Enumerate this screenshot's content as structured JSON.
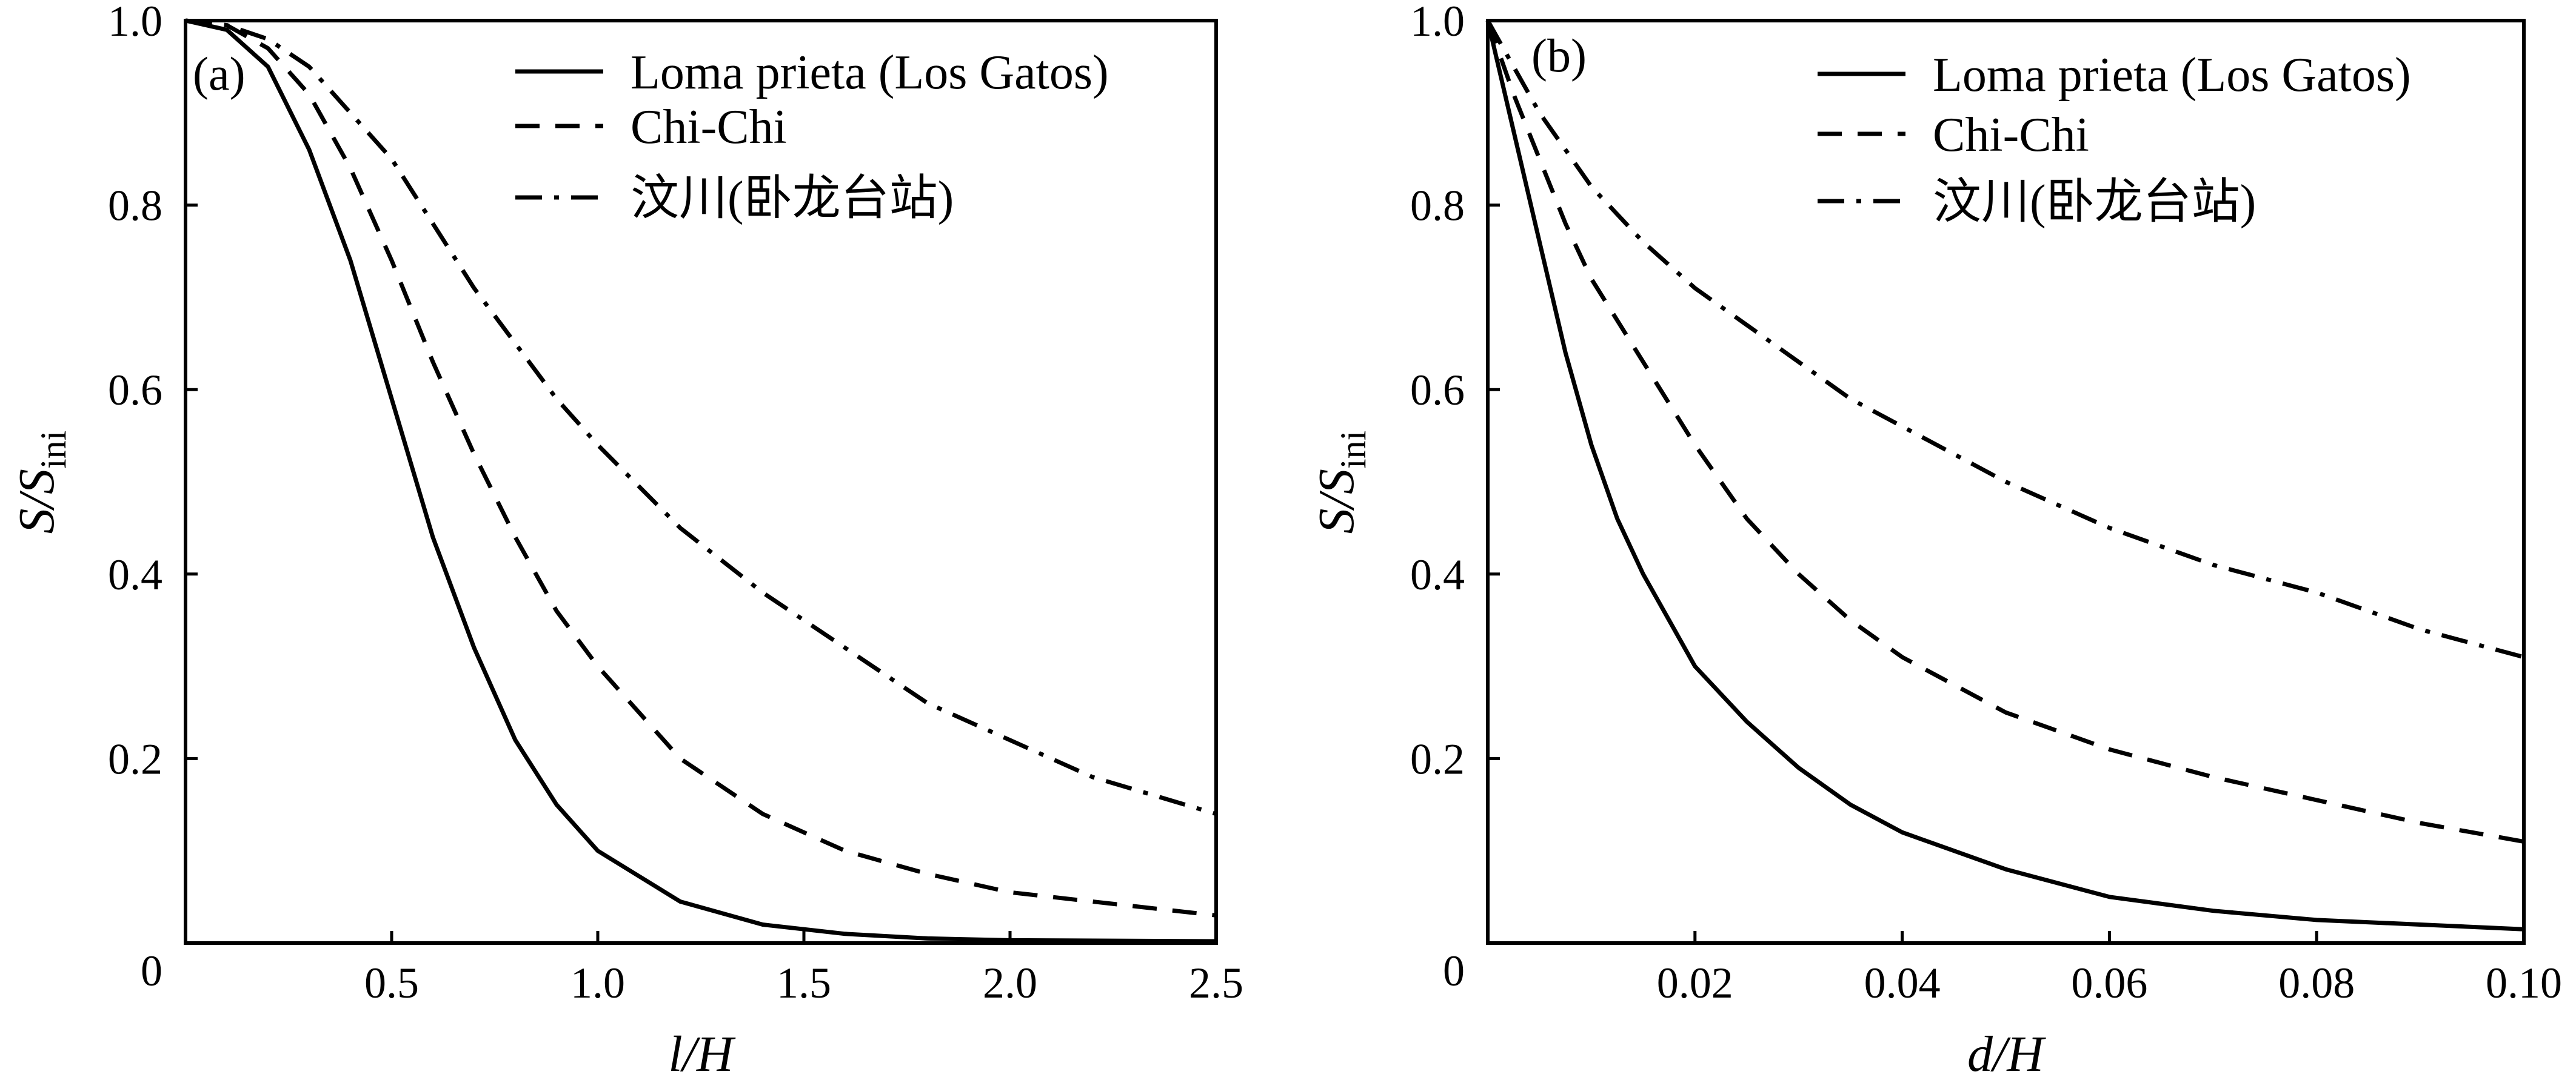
{
  "figure": {
    "panels": [
      {
        "panel_label": "(a)",
        "ylabel_main": "S",
        "ylabel_sep": "/S",
        "ylabel_sub": "ini",
        "xlabel": "l/H"
      },
      {
        "panel_label": "(b)",
        "ylabel_main": "S",
        "ylabel_sep": "/S",
        "ylabel_sub": "ini",
        "xlabel": "d/H"
      }
    ]
  },
  "chart_data": [
    {
      "type": "line",
      "panel": "(a)",
      "xlabel": "l/H",
      "ylabel": "S/S_ini",
      "xlim": [
        0,
        2.5
      ],
      "ylim": [
        0,
        1.0
      ],
      "xticks": [
        0.5,
        1.0,
        1.5,
        2.0,
        2.5
      ],
      "xtick_labels": [
        "0.5",
        "1.0",
        "1.5",
        "2.0",
        "2.5"
      ],
      "yticks": [
        0,
        0.2,
        0.4,
        0.6,
        0.8,
        1.0
      ],
      "ytick_labels": [
        "0",
        "0.2",
        "0.4",
        "0.6",
        "0.8",
        "1.0"
      ],
      "grid": false,
      "legend_position": "top-right",
      "series": [
        {
          "name": "Loma prieta (Los Gatos)",
          "style": "solid",
          "x": [
            0,
            0.1,
            0.2,
            0.3,
            0.4,
            0.5,
            0.6,
            0.7,
            0.8,
            0.9,
            1.0,
            1.2,
            1.4,
            1.6,
            1.8,
            2.0,
            2.5
          ],
          "y": [
            1.0,
            0.99,
            0.95,
            0.86,
            0.74,
            0.59,
            0.44,
            0.32,
            0.22,
            0.15,
            0.1,
            0.045,
            0.02,
            0.01,
            0.005,
            0.003,
            0.002
          ]
        },
        {
          "name": "Chi-Chi",
          "style": "dashed",
          "x": [
            0,
            0.1,
            0.2,
            0.3,
            0.4,
            0.5,
            0.6,
            0.7,
            0.8,
            0.9,
            1.0,
            1.2,
            1.4,
            1.6,
            1.8,
            2.0,
            2.2,
            2.5
          ],
          "y": [
            1.0,
            0.995,
            0.97,
            0.92,
            0.84,
            0.74,
            0.63,
            0.53,
            0.44,
            0.36,
            0.3,
            0.2,
            0.14,
            0.1,
            0.075,
            0.055,
            0.045,
            0.03
          ]
        },
        {
          "name": "汶川(卧龙台站)",
          "style": "dashdot",
          "x": [
            0,
            0.1,
            0.2,
            0.3,
            0.4,
            0.5,
            0.6,
            0.7,
            0.8,
            0.9,
            1.0,
            1.2,
            1.4,
            1.6,
            1.8,
            2.0,
            2.2,
            2.5
          ],
          "y": [
            1.0,
            0.995,
            0.98,
            0.95,
            0.9,
            0.85,
            0.78,
            0.71,
            0.65,
            0.59,
            0.54,
            0.45,
            0.38,
            0.32,
            0.26,
            0.22,
            0.18,
            0.14
          ]
        }
      ]
    },
    {
      "type": "line",
      "panel": "(b)",
      "xlabel": "d/H",
      "ylabel": "S/S_ini",
      "xlim": [
        0,
        0.1
      ],
      "ylim": [
        0,
        1.0
      ],
      "xticks": [
        0.02,
        0.04,
        0.06,
        0.08,
        0.1
      ],
      "xtick_labels": [
        "0.02",
        "0.04",
        "0.06",
        "0.08",
        "0.10"
      ],
      "yticks": [
        0,
        0.2,
        0.4,
        0.6,
        0.8,
        1.0
      ],
      "ytick_labels": [
        "0",
        "0.2",
        "0.4",
        "0.6",
        "0.8",
        "1.0"
      ],
      "grid": false,
      "legend_position": "top-right",
      "series": [
        {
          "name": "Loma prieta (Los Gatos)",
          "style": "solid",
          "x": [
            0,
            0.0025,
            0.005,
            0.0075,
            0.01,
            0.0125,
            0.015,
            0.0175,
            0.02,
            0.025,
            0.03,
            0.035,
            0.04,
            0.05,
            0.06,
            0.07,
            0.08,
            0.09,
            0.1
          ],
          "y": [
            1.0,
            0.88,
            0.76,
            0.64,
            0.54,
            0.46,
            0.4,
            0.35,
            0.3,
            0.24,
            0.19,
            0.15,
            0.12,
            0.08,
            0.05,
            0.035,
            0.025,
            0.02,
            0.015
          ]
        },
        {
          "name": "Chi-Chi",
          "style": "dashed",
          "x": [
            0,
            0.0025,
            0.005,
            0.0075,
            0.01,
            0.015,
            0.02,
            0.025,
            0.03,
            0.035,
            0.04,
            0.05,
            0.06,
            0.07,
            0.08,
            0.09,
            0.1
          ],
          "y": [
            1.0,
            0.92,
            0.85,
            0.78,
            0.72,
            0.63,
            0.54,
            0.46,
            0.4,
            0.35,
            0.31,
            0.25,
            0.21,
            0.18,
            0.155,
            0.13,
            0.11
          ]
        },
        {
          "name": "汶川(卧龙台站)",
          "style": "dashdot",
          "x": [
            0,
            0.0025,
            0.005,
            0.0075,
            0.01,
            0.015,
            0.02,
            0.025,
            0.03,
            0.035,
            0.04,
            0.045,
            0.05,
            0.06,
            0.07,
            0.08,
            0.09,
            0.1
          ],
          "y": [
            1.0,
            0.95,
            0.9,
            0.86,
            0.82,
            0.76,
            0.71,
            0.67,
            0.63,
            0.59,
            0.56,
            0.53,
            0.5,
            0.45,
            0.41,
            0.38,
            0.34,
            0.31
          ]
        }
      ]
    }
  ]
}
